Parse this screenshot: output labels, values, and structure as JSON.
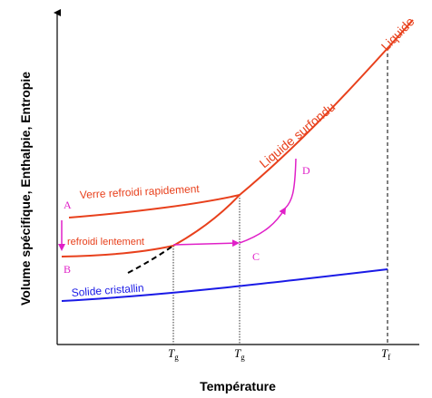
{
  "axes": {
    "ylabel": "Volume spécifique, Enthalpie, Entropie",
    "xlabel": "Température"
  },
  "ticks": {
    "tg_fast": {
      "main": "T",
      "sub": "g"
    },
    "tg_slow": {
      "main": "T",
      "sub": "g"
    },
    "tf": {
      "main": "T",
      "sub": "f"
    }
  },
  "curves": {
    "liquide": "Liquide",
    "liquide_surfondu": "Liquide surfondu",
    "verre_rapide": "Verre refroidi rapidement",
    "verre_lent": "refroidi lentement",
    "solide": "Solide cristallin"
  },
  "points": {
    "A": "A",
    "B": "B",
    "C": "C",
    "D": "D"
  },
  "colors": {
    "liquid": "#e8401c",
    "glass": "#e8401c",
    "solid": "#1a1ae6",
    "path": "#e020c8",
    "axis": "#000000"
  }
}
